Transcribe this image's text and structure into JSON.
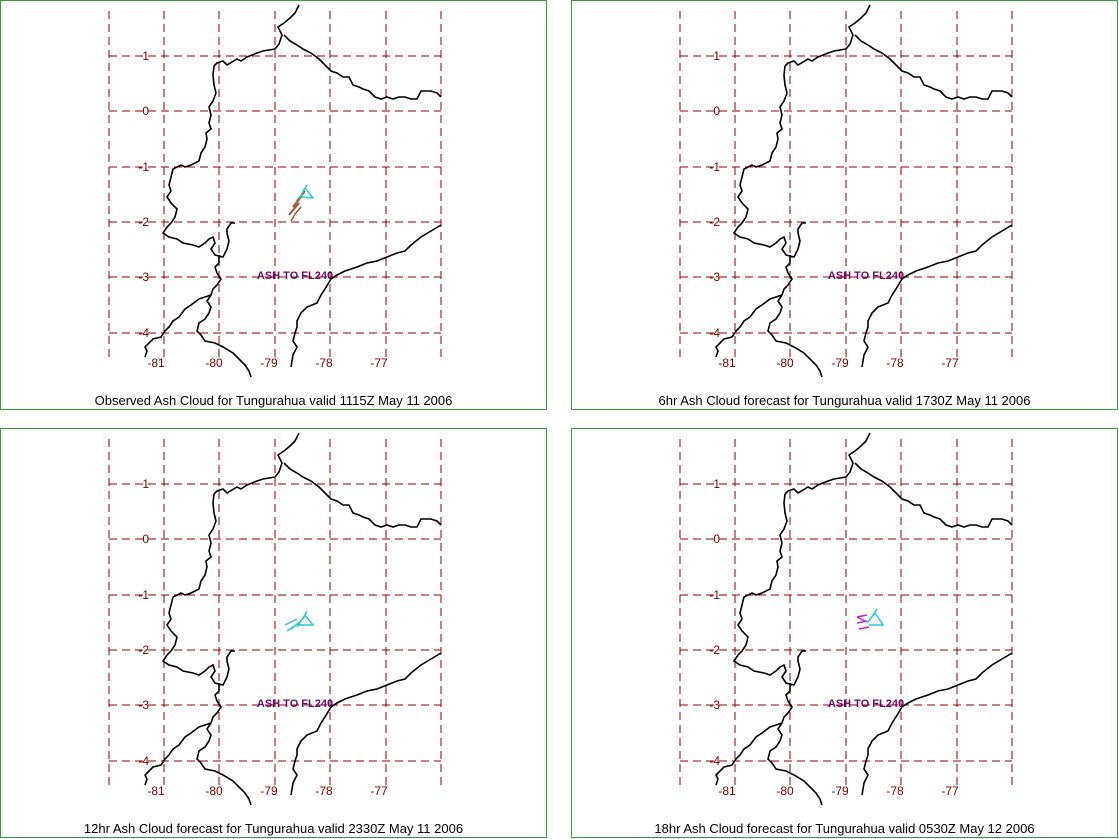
{
  "map": {
    "lat_ticks": [
      "1",
      "0",
      "-1",
      "-2",
      "-3",
      "-4"
    ],
    "lon_ticks": [
      "-81",
      "-80",
      "-79",
      "-78",
      "-77"
    ],
    "ash_label": "ASH TO FL240",
    "colors": {
      "border": "#3a9a3a",
      "grid": "#8b0000",
      "coast": "#000000",
      "label": "#6a0a6a"
    }
  },
  "panels": [
    {
      "caption": "Observed Ash Cloud for Tungurahua valid 1115Z May 11 2006",
      "cloud_color": "#a0522d",
      "cloud_style": "observed"
    },
    {
      "caption": "6hr Ash Cloud forecast for Tungurahua valid 1730Z May 11 2006",
      "cloud_color": "#22cc22",
      "cloud_style": "f6"
    },
    {
      "caption": "12hr Ash Cloud forecast for Tungurahua valid 2330Z May 11 2006",
      "cloud_color": "#22cccc",
      "cloud_style": "f12"
    },
    {
      "caption": "18hr Ash Cloud forecast for Tungurahua valid 0530Z May 12 2006",
      "cloud_color": "#cc22cc",
      "cloud_style": "f18"
    }
  ]
}
